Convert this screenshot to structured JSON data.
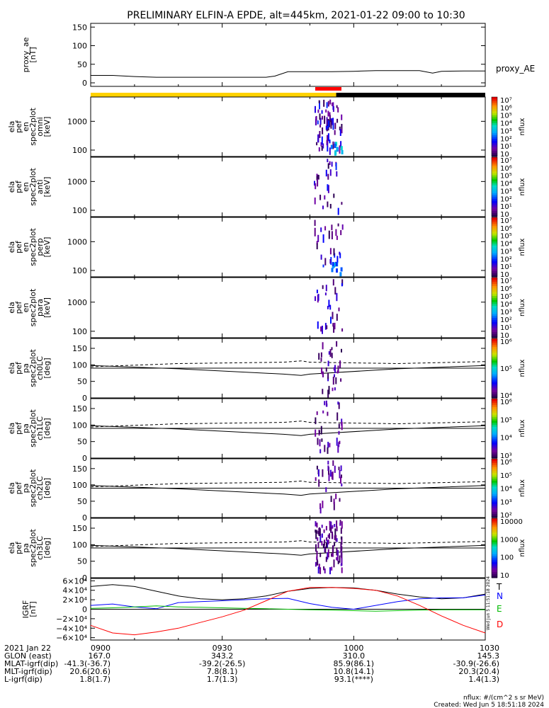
{
  "title": "PRELIMINARY ELFIN-A EPDE, alt=445km, 2021-01-22 09:00 to 10:30",
  "colors": {
    "science_bar": "#ffd200",
    "eclipse_bar": "#000000",
    "data_marker": "#ff0000",
    "north": "#0000ff",
    "east": "#00bb00",
    "down": "#ff0000",
    "total": "#000000"
  },
  "chart_data": [
    {
      "type": "line",
      "id": "proxy_ae",
      "ylabel_lines": [
        "proxy_ae",
        "[nT]"
      ],
      "ylim": [
        0,
        160
      ],
      "yticks": [
        0,
        50,
        100,
        150
      ],
      "series_label": "proxy_AE",
      "x": [
        0,
        5,
        10,
        15,
        20,
        25,
        30,
        35,
        40,
        42,
        45,
        50,
        55,
        60,
        65,
        70,
        75,
        78,
        80,
        85,
        90
      ],
      "values": [
        20,
        20,
        17,
        15,
        15,
        15,
        15,
        15,
        15,
        18,
        30,
        30,
        30,
        31,
        33,
        33,
        33,
        26,
        31,
        32,
        32
      ]
    },
    {
      "type": "heatmap",
      "id": "omni",
      "ylabel_lines": [
        "ela",
        "pef",
        "en",
        "spec2plot",
        "omni",
        "[keV]"
      ],
      "yscale": "log",
      "yticks": [
        100,
        1000
      ],
      "cbar_ticks": [
        "10",
        "10¹",
        "10²",
        "10³",
        "10⁴",
        "10⁵",
        "10⁶",
        "10⁷"
      ],
      "cbar_label": "nflux"
    },
    {
      "type": "heatmap",
      "id": "anti",
      "ylabel_lines": [
        "ela",
        "pef",
        "en",
        "spec2plot",
        "anti",
        "[keV]"
      ],
      "yscale": "log",
      "yticks": [
        100,
        1000
      ],
      "cbar_ticks": [
        "10",
        "10¹",
        "10²",
        "10³",
        "10⁴",
        "10⁵",
        "10⁶",
        "10⁷"
      ],
      "cbar_label": "nflux"
    },
    {
      "type": "heatmap",
      "id": "perp",
      "ylabel_lines": [
        "ela",
        "pef",
        "en",
        "spec2plot",
        "perp",
        "[keV]"
      ],
      "yscale": "log",
      "yticks": [
        100,
        1000
      ],
      "cbar_ticks": [
        "10",
        "10¹",
        "10²",
        "10³",
        "10⁴",
        "10⁵",
        "10⁶",
        "10⁷"
      ],
      "cbar_label": "nflux"
    },
    {
      "type": "heatmap",
      "id": "para",
      "ylabel_lines": [
        "ela",
        "pef",
        "en",
        "spec2plot",
        "para",
        "[keV]"
      ],
      "yscale": "log",
      "yticks": [
        100,
        1000
      ],
      "cbar_ticks": [
        "10",
        "10¹",
        "10²",
        "10³",
        "10⁴",
        "10⁵",
        "10⁶",
        "10⁷"
      ],
      "cbar_label": "nflux"
    },
    {
      "type": "heatmap",
      "id": "ch0LC",
      "ylabel_lines": [
        "ela",
        "pef",
        "pa",
        "spec2plot",
        "ch0LC",
        "[deg]"
      ],
      "yscale": "linear",
      "ylim": [
        0,
        180
      ],
      "yticks": [
        0,
        50,
        100,
        150
      ],
      "cbar_ticks": [
        "10⁴",
        "10⁵",
        "10⁶"
      ],
      "cbar_label": "nflux"
    },
    {
      "type": "heatmap",
      "id": "ch1LC",
      "ylabel_lines": [
        "ela",
        "pef",
        "pa",
        "spec2plot",
        "ch1LC",
        "[deg]"
      ],
      "yscale": "linear",
      "ylim": [
        0,
        180
      ],
      "yticks": [
        0,
        50,
        100,
        150
      ],
      "cbar_ticks": [
        "10³",
        "10⁴",
        "10⁵",
        "10⁶"
      ],
      "cbar_label": "nflux"
    },
    {
      "type": "heatmap",
      "id": "ch2LC",
      "ylabel_lines": [
        "ela",
        "pef",
        "pa",
        "spec2plot",
        "ch2LC",
        "[deg]"
      ],
      "yscale": "linear",
      "ylim": [
        0,
        180
      ],
      "yticks": [
        0,
        50,
        100,
        150
      ],
      "cbar_ticks": [
        "10²",
        "10³",
        "10⁴",
        "10⁵",
        "10⁶"
      ],
      "cbar_label": "nflux"
    },
    {
      "type": "heatmap",
      "id": "ch3LC",
      "ylabel_lines": [
        "ela",
        "pef",
        "pa",
        "spec2plot",
        "ch3LC",
        "[deg]"
      ],
      "yscale": "linear",
      "ylim": [
        0,
        180
      ],
      "yticks": [
        0,
        50,
        100,
        150
      ],
      "cbar_ticks": [
        "10",
        "100",
        "1000",
        "10000"
      ],
      "cbar_label": "nflux"
    },
    {
      "type": "line",
      "id": "igrf",
      "ylabel_lines": [
        "IGRF",
        "[nT]"
      ],
      "ylim": [
        -65000,
        65000
      ],
      "ytick_labels": [
        "6×10⁴",
        "4×10⁴",
        "2×10⁴",
        "0",
        "−2×10⁴",
        "−4×10⁴",
        "−6×10⁴"
      ],
      "legend": [
        "T",
        "N",
        "E",
        "D"
      ],
      "side_text": "Wed Jun  5 11:51:18 2024",
      "x": [
        0,
        5,
        10,
        15,
        20,
        25,
        30,
        35,
        40,
        45,
        50,
        55,
        60,
        65,
        70,
        75,
        80,
        85,
        90
      ],
      "series": [
        {
          "name": "T",
          "color": "#000000",
          "values": [
            48000,
            52000,
            48000,
            38000,
            28000,
            22000,
            20000,
            22000,
            28000,
            38000,
            44000,
            46000,
            45000,
            40000,
            32000,
            26000,
            22000,
            24000,
            32000
          ]
        },
        {
          "name": "N",
          "color": "#0000ff",
          "values": [
            8000,
            11000,
            5000,
            1000,
            14000,
            16000,
            18000,
            20000,
            22000,
            23000,
            12000,
            4000,
            0,
            8000,
            16000,
            22000,
            24000,
            24000,
            30000
          ]
        },
        {
          "name": "E",
          "color": "#00bb00",
          "values": [
            2000,
            3000,
            5000,
            7000,
            5000,
            4000,
            3000,
            2000,
            1000,
            0,
            -1000,
            -2000,
            -3000,
            -4000,
            -3000,
            -2000,
            -1000,
            -1000,
            -1000
          ]
        },
        {
          "name": "D",
          "color": "#ff0000",
          "values": [
            -34000,
            -50000,
            -54000,
            -48000,
            -40000,
            -28000,
            -16000,
            -2000,
            18000,
            38000,
            46000,
            46000,
            44000,
            40000,
            28000,
            8000,
            -14000,
            -34000,
            -50000
          ]
        }
      ]
    }
  ],
  "time_axis": {
    "tick_labels": [
      "0900",
      "0930",
      "1000",
      "1030"
    ],
    "rows": [
      {
        "label": "2021 Jan 22",
        "values": [
          "0900",
          "0930",
          "1000",
          "1030"
        ]
      },
      {
        "label": "GLON (east)",
        "values": [
          "167.0",
          "343.2",
          "310.0",
          "145.3"
        ]
      },
      {
        "label": "MLAT-igrf(dip)",
        "values": [
          "-41.3(-36.7)",
          "-39.2(-26.5)",
          "85.9(86.1)",
          "-30.9(-26.6)"
        ]
      },
      {
        "label": "MLT-igrf(dip)",
        "values": [
          "20.6(20.6)",
          "7.8(8.1)",
          "10.8(14.1)",
          "20.3(20.4)"
        ]
      },
      {
        "label": "L-igrf(dip)",
        "values": [
          "1.8(1.7)",
          "1.7(1.3)",
          "93.1(****)",
          "1.4(1.3)"
        ]
      }
    ]
  },
  "footer": {
    "units": "nflux: #/(cm^2 s sr MeV)",
    "created": "Created: Wed Jun  5 18:51:18 2024"
  }
}
